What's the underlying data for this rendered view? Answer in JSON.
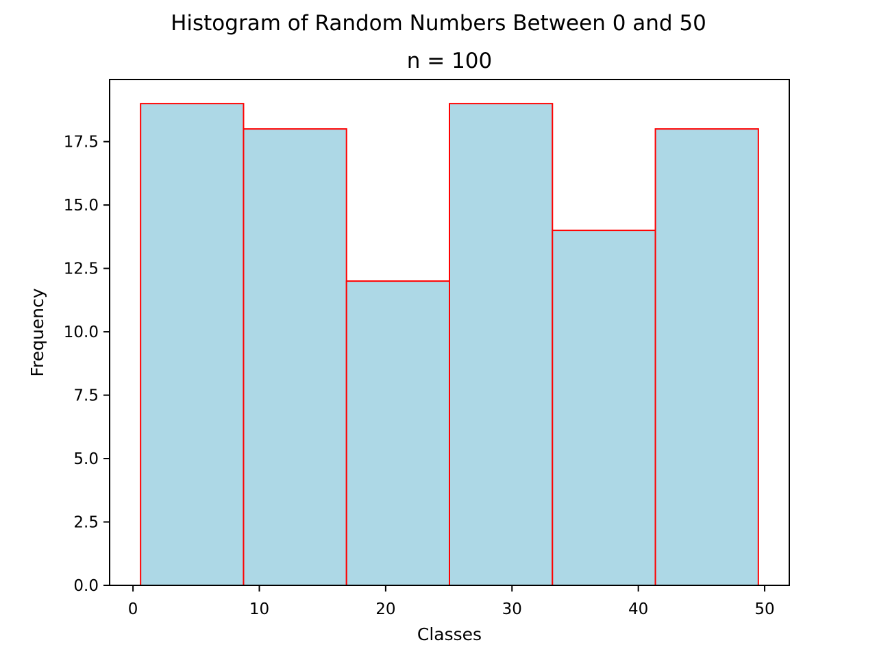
{
  "chart_data": {
    "type": "bar",
    "title": "Histogram of Random Numbers Between 0 and 50",
    "subtitle": "n = 100",
    "xlabel": "Classes",
    "ylabel": "Frequency",
    "bin_edges": [
      0.6,
      8.75,
      16.9,
      25.05,
      33.2,
      41.35,
      49.5
    ],
    "values": [
      19,
      18,
      12,
      19,
      14,
      18
    ],
    "xlim": [
      -1.85,
      51.95
    ],
    "ylim": [
      0,
      19.95
    ],
    "xticks": [
      0,
      10,
      20,
      30,
      40,
      50
    ],
    "xtick_labels": [
      "0",
      "10",
      "20",
      "30",
      "40",
      "50"
    ],
    "yticks": [
      0,
      2.5,
      5,
      7.5,
      10,
      12.5,
      15,
      17.5
    ],
    "ytick_labels": [
      "0.0",
      "2.5",
      "5.0",
      "7.5",
      "10.0",
      "12.5",
      "15.0",
      "17.5"
    ],
    "grid": false,
    "bar_fill_color": "#add8e6",
    "bar_edge_color": "#ff0000"
  }
}
